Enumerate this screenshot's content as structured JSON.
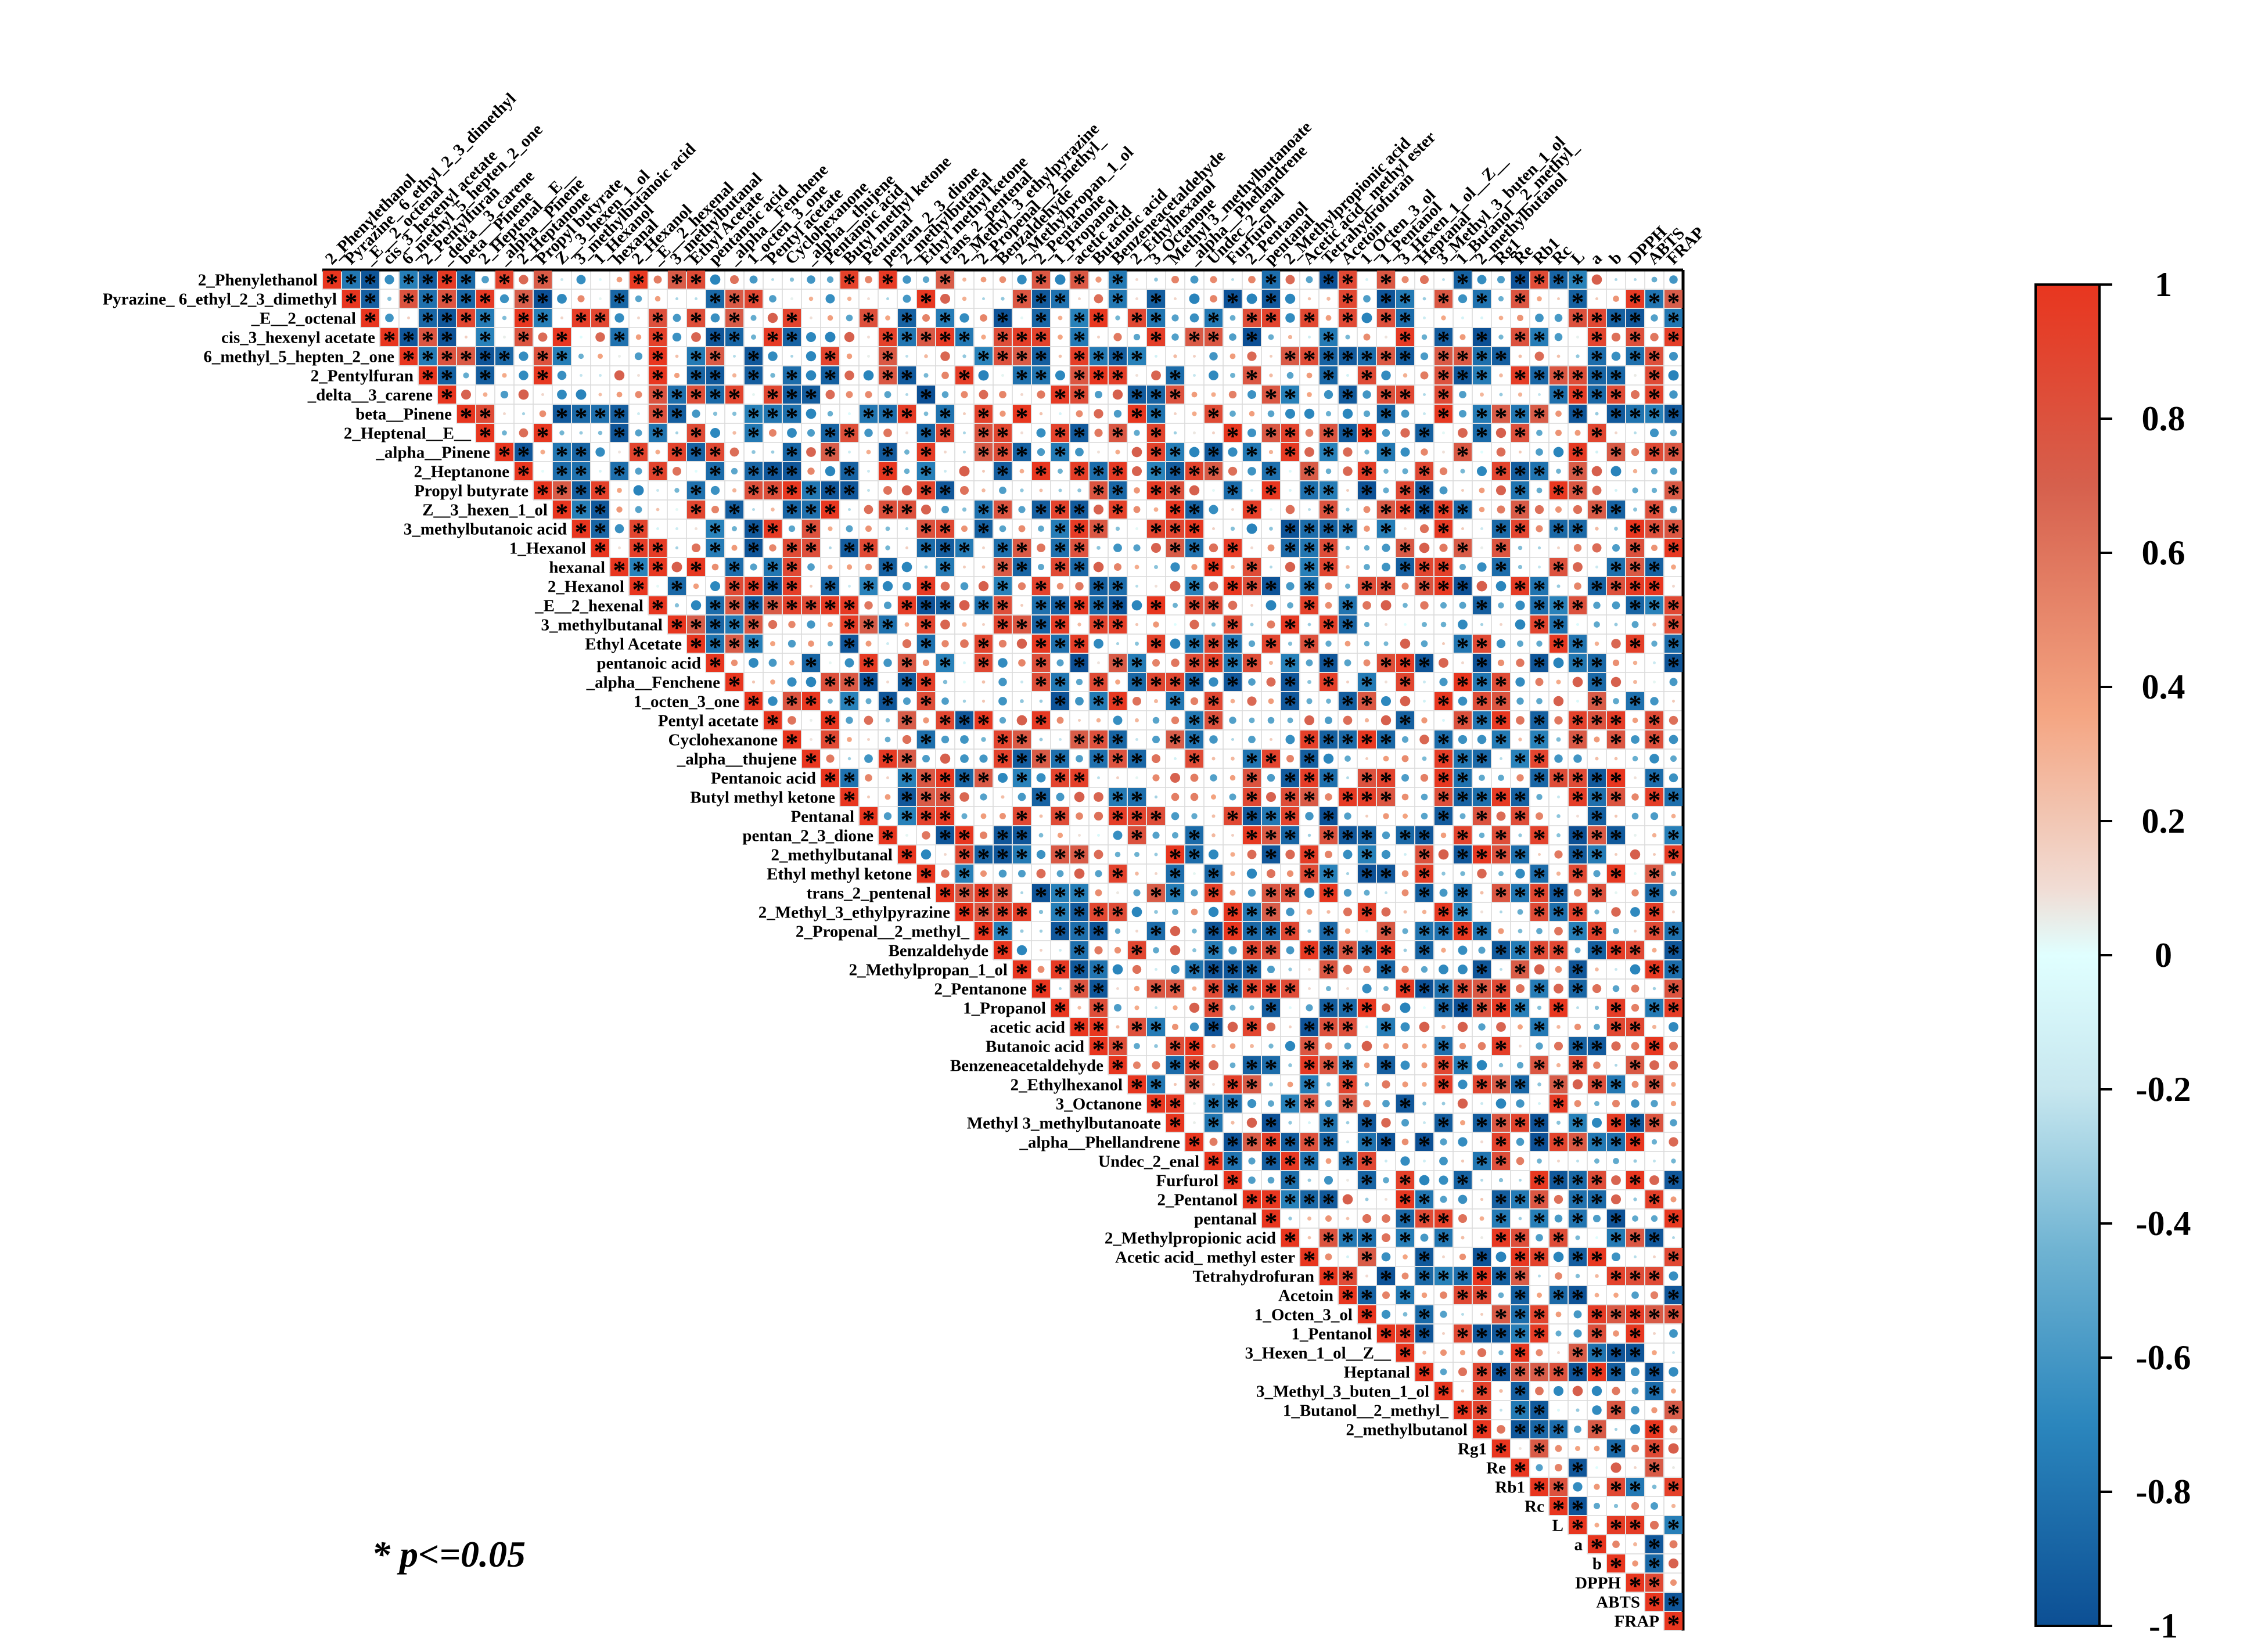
{
  "chart_data": {
    "type": "heatmap",
    "subtype": "upper-triangle correlation matrix (circle size/color = r, * = significant)",
    "variables": [
      "2_Phenylethanol",
      "Pyrazine_ 6_ethyl_2_3_dimethyl",
      "_E__2_octenal",
      "cis_3_hexenyl acetate",
      "6_methyl_5_hepten_2_one",
      "2_Pentylfuran",
      "_delta__3_carene",
      "beta__Pinene",
      "2_Heptenal__E__",
      "_alpha__Pinene",
      "2_Heptanone",
      "Propyl butyrate",
      "Z__3_hexen_1_ol",
      "3_methylbutanoic acid",
      "1_Hexanol",
      "hexanal",
      "2_Hexanol",
      "_E__2_hexenal",
      "3_methylbutanal",
      "Ethyl Acetate",
      "pentanoic acid",
      "_alpha__Fenchene",
      "1_octen_3_one",
      "Pentyl acetate",
      "Cyclohexanone",
      "_alpha__thujene",
      "Pentanoic acid",
      "Butyl methyl ketone",
      "Pentanal",
      "pentan_2_3_dione",
      "2_methylbutanal",
      "Ethyl methyl ketone",
      "trans_2_pentenal",
      "2_Methyl_3_ethylpyrazine",
      "2_Propenal__2_methyl_",
      "Benzaldehyde",
      "2_Methylpropan_1_ol",
      "2_Pentanone",
      "1_Propanol",
      "acetic acid",
      "Butanoic acid",
      "Benzeneacetaldehyde",
      "2_Ethylhexanol",
      "3_Octanone",
      "Methyl 3_methylbutanoate",
      "_alpha__Phellandrene",
      "Undec_2_enal",
      "Furfurol",
      "2_Pentanol",
      "pentanal",
      "2_Methylpropionic acid",
      "Acetic acid_ methyl ester",
      "Tetrahydrofuran",
      "Acetoin",
      "1_Octen_3_ol",
      "1_Pentanol",
      "3_Hexen_1_ol__Z__",
      "Heptanal",
      "3_Methyl_3_buten_1_ol",
      "1_Butanol__2_methyl_",
      "2_methylbutanol",
      "Rg1",
      "Re",
      "Rb1",
      "Rc",
      "L",
      "a",
      "b",
      "DPPH",
      "ABTS",
      "FRAP"
    ],
    "value_range": [
      -1,
      1
    ],
    "colorbar": {
      "ticks": [
        "1",
        "0.8",
        "0.6",
        "0.4",
        "0.2",
        "0",
        "-0.2",
        "-0.4",
        "-0.6",
        "-0.8",
        "-1"
      ],
      "colors": [
        "#053061",
        "#2166ac",
        "#4393c3",
        "#92c5de",
        "#d1e5f0",
        "#e0ffff",
        "#fddbc7",
        "#f4a582",
        "#d6604d",
        "#b2182b",
        "#e02010"
      ]
    },
    "significance_note": "* p<=0.05",
    "legend_position": "right",
    "grid": true
  }
}
